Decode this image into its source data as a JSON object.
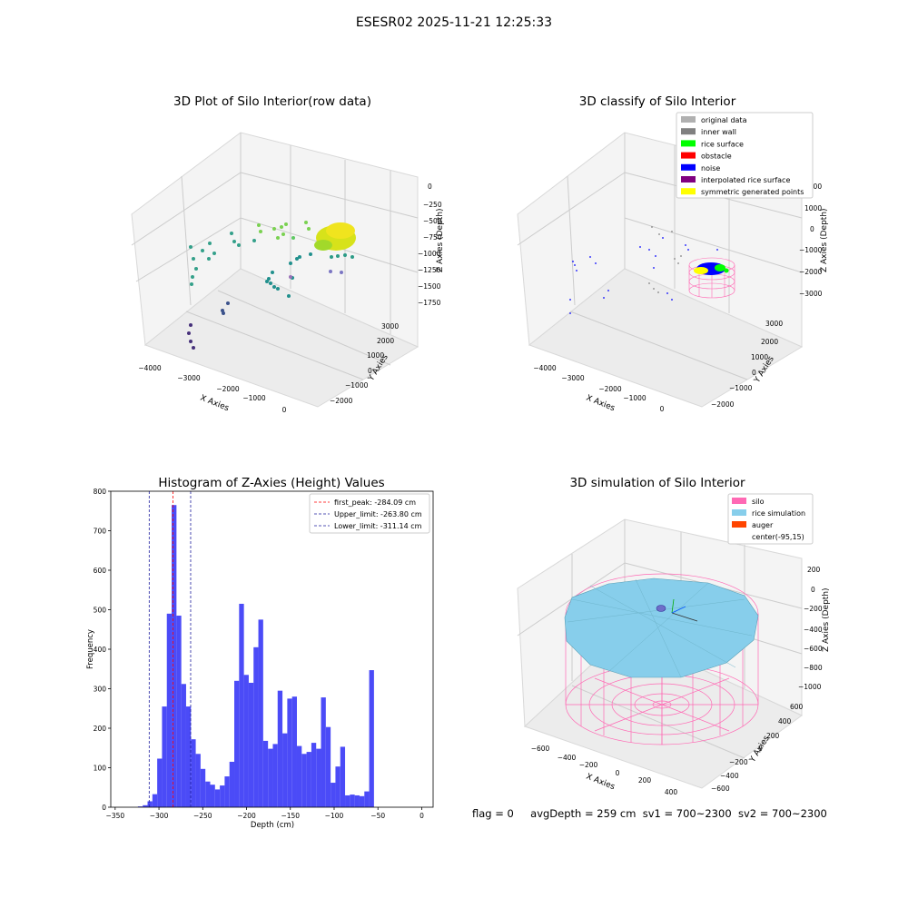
{
  "suptitle": "ESESR02 2025-11-21 12:25:33",
  "colors": {
    "bar": "#4b4bf7",
    "peak_line": "#ff0000",
    "limit_line": "#1f1f9f",
    "silo": "#ff69b4",
    "rice": "#87ceeb",
    "auger": "#ff4500",
    "noise": "#0000ff",
    "rice_surface": "#00ff00"
  },
  "panel_raw": {
    "title": "3D Plot of Silo Interior(row data)",
    "xlabel": "X Axies",
    "ylabel": "Y Axies",
    "zlabel": "Z Axies (Depth)",
    "xticks": [
      "−4000",
      "−3000",
      "−2000",
      "−1000",
      "0"
    ],
    "yticks": [
      "−2000",
      "−1000",
      "0",
      "1000",
      "2000",
      "3000"
    ],
    "zticks": [
      "0",
      "−250",
      "−500",
      "−750",
      "−1000",
      "−1250",
      "−1500",
      "−1750"
    ]
  },
  "panel_classify": {
    "title": "3D classify of Silo Interior",
    "xlabel": "X Axies",
    "ylabel": "Y Axies",
    "zlabel": "Z Axies (Depth)",
    "xticks": [
      "−4000",
      "−3000",
      "−2000",
      "−1000",
      "0"
    ],
    "yticks": [
      "−2000",
      "−1000",
      "0",
      "1000",
      "2000",
      "3000"
    ],
    "zticks": [
      "2000",
      "1000",
      "0",
      "−1000",
      "−2000",
      "−3000"
    ],
    "legend": [
      {
        "label": "original data",
        "color": "#b0b0b0"
      },
      {
        "label": "inner wall",
        "color": "#808080"
      },
      {
        "label": "rice surface",
        "color": "#00ff00"
      },
      {
        "label": "obstacle",
        "color": "#ff0000"
      },
      {
        "label": "noise",
        "color": "#0000ff"
      },
      {
        "label": "interpolated rice surface",
        "color": "#800080"
      },
      {
        "label": "symmetric generated points",
        "color": "#ffff00"
      }
    ]
  },
  "panel_sim": {
    "title": "3D simulation of Silo Interior",
    "xlabel": "X Axies",
    "ylabel": "Y Axies",
    "zlabel": "Z Axies (Depth)",
    "xticks": [
      "−600",
      "−400",
      "−200",
      "0",
      "200",
      "400"
    ],
    "yticks": [
      "−600",
      "−400",
      "−200",
      "0",
      "200",
      "400",
      "600"
    ],
    "zticks": [
      "200",
      "0",
      "−200",
      "−400",
      "−600",
      "−800",
      "−1000"
    ],
    "legend": [
      {
        "label": "silo",
        "color": "#ff69b4"
      },
      {
        "label": "rice simulation",
        "color": "#87ceeb"
      },
      {
        "label": "auger",
        "color": "#ff4500"
      },
      {
        "label": "center(-95,15)",
        "color": "#ffffff"
      }
    ]
  },
  "footer": {
    "flag": "flag = 0",
    "avg": "avgDepth = 259 cm",
    "sv1": "sv1 = 700~2300",
    "sv2": "sv2 = 700~2300"
  },
  "chart_data": [
    {
      "type": "bar",
      "title": "Histogram of Z-Axies (Height) Values",
      "xlabel": "Depth (cm)",
      "ylabel": "Frequency",
      "xlim": [
        -355,
        13
      ],
      "ylim": [
        0,
        800
      ],
      "xticks": [
        -350,
        -300,
        -250,
        -200,
        -150,
        -100,
        -50,
        0
      ],
      "yticks": [
        0,
        100,
        200,
        300,
        400,
        500,
        600,
        700,
        800
      ],
      "bin_start": -324,
      "bin_width": 5.5,
      "values": [
        2,
        5,
        15,
        33,
        123,
        255,
        490,
        765,
        485,
        312,
        255,
        172,
        135,
        97,
        65,
        57,
        45,
        55,
        78,
        115,
        320,
        515,
        335,
        315,
        405,
        475,
        168,
        148,
        160,
        295,
        187,
        275,
        280,
        155,
        135,
        140,
        163,
        148,
        278,
        203,
        62,
        103,
        153,
        30,
        32,
        30,
        28,
        40,
        347
      ],
      "lines": [
        {
          "label": "first_peak: -284.09 cm",
          "x": -284.09,
          "color": "#ff0000"
        },
        {
          "label": "Upper_limit: -263.80 cm",
          "x": -263.8,
          "color": "#1f1f9f"
        },
        {
          "label": "Lower_limit: -311.14 cm",
          "x": -311.14,
          "color": "#1f1f9f"
        }
      ],
      "legend_position": "upper right"
    }
  ]
}
